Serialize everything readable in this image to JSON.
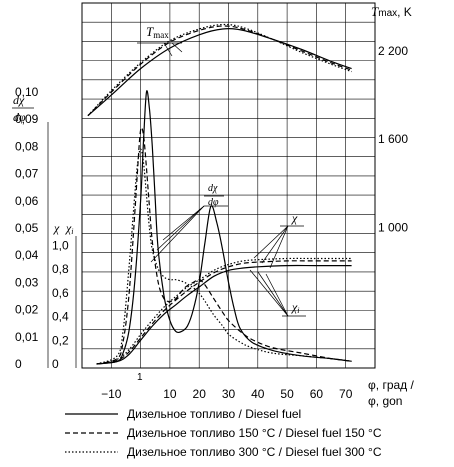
{
  "chart_data": {
    "type": "line",
    "x_axis": {
      "label": "φ, град / φ, gon",
      "label_line1": "φ, град /",
      "label_line2": "φ, gon",
      "ticks": [
        -10,
        10,
        20,
        30,
        40,
        50,
        60,
        70
      ],
      "tick_labels": [
        "−10",
        "10",
        "20",
        "30",
        "40",
        "50",
        "60",
        "70"
      ],
      "range": [
        -20,
        80
      ],
      "annotation": "1",
      "grid": true
    },
    "y_axes": {
      "tmax": {
        "label": "T",
        "label_sub": "max",
        "label_unit": ", K",
        "ticks": [
          1000,
          1600,
          2200
        ],
        "tick_labels": [
          "1 000",
          "1 600",
          "2 200"
        ]
      },
      "dchi": {
        "label_num": "dχ",
        "label_den": "dφ",
        "ticks": [
          0,
          0.01,
          0.02,
          0.03,
          0.04,
          0.05,
          0.06,
          0.07,
          0.08,
          0.09,
          0.1
        ],
        "tick_labels": [
          "0",
          "0,01",
          "0,02",
          "0,03",
          "0,04",
          "0,05",
          "0,06",
          "0,07",
          "0,08",
          "0,09",
          "0,10"
        ]
      },
      "chi": {
        "label_a": "χ",
        "label_b": "χ",
        "label_b_sub": "i",
        "ticks": [
          0,
          0.2,
          0.4,
          0.6,
          0.8,
          1.0
        ],
        "tick_labels": [
          "0",
          "0,2",
          "0,4",
          "0,6",
          "0,8",
          "1,0"
        ]
      }
    },
    "annotations": {
      "tmax": "T",
      "tmax_sub": "max",
      "dchi_num": "dχ",
      "dchi_den": "dφ",
      "chi": "χ",
      "chi_i": "χ",
      "chi_i_sub": "i"
    },
    "series": [
      {
        "name": "Дизельное топливо / Diesel fuel",
        "style": "solid",
        "tmax": {
          "x": [
            -18,
            -10,
            0,
            10,
            20,
            28,
            35,
            45,
            55,
            65,
            72
          ],
          "y": [
            1760,
            1900,
            2080,
            2220,
            2310,
            2350,
            2340,
            2280,
            2210,
            2130,
            2080
          ]
        },
        "dchi_dphi": {
          "x": [
            -15,
            -8,
            -6,
            -4,
            -2,
            0,
            1,
            2,
            3,
            4,
            5,
            6,
            8,
            10,
            12,
            14,
            16,
            18,
            20,
            22,
            24,
            26,
            28,
            30,
            32,
            34,
            38,
            45,
            55,
            65,
            72
          ],
          "y": [
            0,
            0.001,
            0.004,
            0.012,
            0.03,
            0.06,
            0.082,
            0.1,
            0.094,
            0.08,
            0.06,
            0.042,
            0.025,
            0.016,
            0.012,
            0.012,
            0.014,
            0.02,
            0.03,
            0.045,
            0.058,
            0.052,
            0.042,
            0.03,
            0.02,
            0.013,
            0.008,
            0.005,
            0.003,
            0.002,
            0.001
          ]
        },
        "chi": {
          "x": [
            -15,
            -8,
            -4,
            0,
            4,
            8,
            12,
            16,
            20,
            25,
            30,
            35,
            40,
            50,
            60,
            72
          ],
          "y": [
            0,
            0.02,
            0.08,
            0.2,
            0.32,
            0.42,
            0.5,
            0.58,
            0.65,
            0.74,
            0.79,
            0.81,
            0.82,
            0.83,
            0.83,
            0.83
          ]
        }
      },
      {
        "name": "Дизельное топливо 150 °С / Diesel fuel 150 °C",
        "style": "dashed",
        "tmax": {
          "x": [
            -18,
            -10,
            0,
            10,
            20,
            28,
            35,
            45,
            55,
            65,
            72
          ],
          "y": [
            1760,
            1920,
            2110,
            2260,
            2340,
            2370,
            2350,
            2280,
            2200,
            2120,
            2070
          ]
        },
        "dchi_dphi": {
          "x": [
            -15,
            -8,
            -6,
            -4,
            -2,
            -1,
            0,
            1,
            2,
            3,
            4,
            6,
            8,
            10,
            12,
            15,
            18,
            20,
            22,
            25,
            28,
            30,
            34,
            38,
            45,
            55,
            65,
            72
          ],
          "y": [
            0,
            0.002,
            0.008,
            0.025,
            0.055,
            0.072,
            0.086,
            0.084,
            0.072,
            0.058,
            0.045,
            0.03,
            0.024,
            0.023,
            0.024,
            0.028,
            0.03,
            0.031,
            0.029,
            0.024,
            0.019,
            0.016,
            0.012,
            0.009,
            0.006,
            0.004,
            0.002,
            0.001
          ]
        },
        "chi": {
          "x": [
            -15,
            -8,
            -4,
            0,
            4,
            8,
            12,
            16,
            20,
            25,
            30,
            35,
            40,
            50,
            60,
            72
          ],
          "y": [
            0,
            0.03,
            0.1,
            0.22,
            0.34,
            0.45,
            0.54,
            0.62,
            0.69,
            0.77,
            0.82,
            0.85,
            0.86,
            0.87,
            0.87,
            0.87
          ]
        }
      },
      {
        "name": "Дизельное топливо 300 °С / Diesel fuel 300 °C",
        "style": "dotted",
        "tmax": {
          "x": [
            -18,
            -10,
            0,
            10,
            20,
            28,
            35,
            45,
            55,
            65,
            72
          ],
          "y": [
            1760,
            1930,
            2120,
            2270,
            2350,
            2380,
            2360,
            2280,
            2190,
            2110,
            2060
          ]
        },
        "dchi_dphi": {
          "x": [
            -15,
            -8,
            -6,
            -4,
            -2,
            -1,
            0,
            1,
            2,
            3,
            4,
            6,
            8,
            10,
            12,
            15,
            18,
            20,
            22,
            25,
            28,
            30,
            34,
            38,
            45,
            55,
            65,
            72
          ],
          "y": [
            0,
            0.003,
            0.012,
            0.035,
            0.062,
            0.074,
            0.079,
            0.074,
            0.062,
            0.05,
            0.042,
            0.035,
            0.032,
            0.031,
            0.031,
            0.03,
            0.028,
            0.026,
            0.023,
            0.018,
            0.014,
            0.011,
            0.008,
            0.006,
            0.004,
            0.003,
            0.002,
            0.001
          ]
        },
        "chi": {
          "x": [
            -15,
            -8,
            -4,
            0,
            4,
            8,
            12,
            16,
            20,
            25,
            30,
            35,
            40,
            50,
            60,
            72
          ],
          "y": [
            0,
            0.04,
            0.12,
            0.25,
            0.37,
            0.48,
            0.57,
            0.65,
            0.71,
            0.79,
            0.84,
            0.87,
            0.88,
            0.89,
            0.89,
            0.89
          ]
        }
      }
    ]
  }
}
